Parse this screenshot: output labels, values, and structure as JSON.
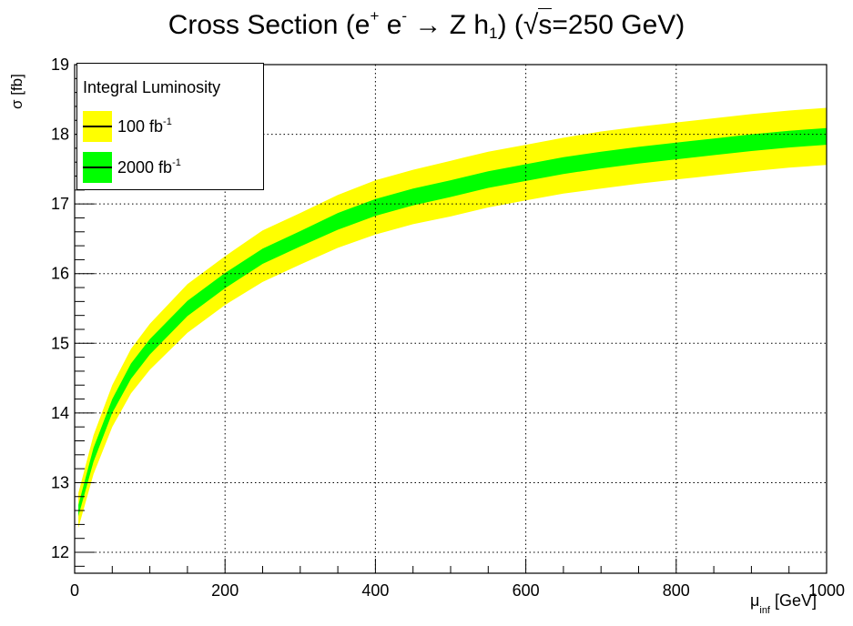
{
  "title": {
    "prefix": "Cross Section (e",
    "sup1": "+",
    "mid1": " e",
    "sup2": "-",
    "arrow": " → Z h",
    "sub1": "1",
    "mid2": ") (√",
    "s": "s",
    "suffix": "=250 GeV)"
  },
  "axes": {
    "ylabel": "σ [fb]",
    "xlabel_main": "μ",
    "xlabel_sub": "inf",
    "xlabel_unit": " [GeV]"
  },
  "legend": {
    "title": "Integral Luminosity",
    "entries": [
      {
        "label": "100 fb",
        "sup": "-1",
        "color": "#ffff00"
      },
      {
        "label": "2000 fb",
        "sup": "-1",
        "color": "#00ff00"
      }
    ]
  },
  "colors": {
    "band_100": "#ffff00",
    "band_2000": "#00ff00",
    "central_line": "#000000",
    "grid": "#000000"
  },
  "chart_data": {
    "type": "area",
    "xlim": [
      0,
      1000
    ],
    "ylim": [
      11.7,
      19
    ],
    "grid": true,
    "legend_position": "top-left",
    "x_ticks": [
      0,
      200,
      400,
      600,
      800,
      1000
    ],
    "y_ticks": [
      12,
      13,
      14,
      15,
      16,
      17,
      18,
      19
    ],
    "x": [
      5,
      25,
      50,
      75,
      100,
      150,
      200,
      250,
      300,
      350,
      400,
      450,
      500,
      550,
      600,
      650,
      700,
      750,
      800,
      850,
      900,
      950,
      1000
    ],
    "series": [
      {
        "name": "100 fb-1",
        "center": [
          12.6,
          13.4,
          14.1,
          14.6,
          14.95,
          15.5,
          15.9,
          16.25,
          16.5,
          16.75,
          16.95,
          17.1,
          17.22,
          17.35,
          17.45,
          17.55,
          17.63,
          17.7,
          17.76,
          17.82,
          17.88,
          17.93,
          17.97
        ],
        "lower": [
          12.35,
          13.12,
          13.8,
          14.28,
          14.62,
          15.15,
          15.55,
          15.88,
          16.13,
          16.37,
          16.56,
          16.71,
          16.82,
          16.95,
          17.05,
          17.15,
          17.22,
          17.29,
          17.35,
          17.41,
          17.47,
          17.52,
          17.56
        ],
        "upper": [
          12.85,
          13.68,
          14.4,
          14.92,
          15.28,
          15.85,
          16.25,
          16.62,
          16.87,
          17.13,
          17.34,
          17.49,
          17.62,
          17.75,
          17.85,
          17.95,
          18.04,
          18.11,
          18.17,
          18.23,
          18.29,
          18.34,
          18.38
        ]
      },
      {
        "name": "2000 fb-1",
        "center": [
          12.6,
          13.4,
          14.1,
          14.6,
          14.95,
          15.5,
          15.9,
          16.25,
          16.5,
          16.75,
          16.95,
          17.1,
          17.22,
          17.35,
          17.45,
          17.55,
          17.63,
          17.7,
          17.76,
          17.82,
          17.88,
          17.93,
          17.97
        ],
        "lower": [
          12.52,
          13.3,
          14.0,
          14.49,
          14.84,
          15.39,
          15.79,
          16.14,
          16.39,
          16.63,
          16.83,
          16.98,
          17.1,
          17.23,
          17.33,
          17.43,
          17.51,
          17.58,
          17.64,
          17.7,
          17.76,
          17.81,
          17.85
        ],
        "upper": [
          12.68,
          13.5,
          14.2,
          14.71,
          15.06,
          15.61,
          16.01,
          16.36,
          16.61,
          16.87,
          17.07,
          17.22,
          17.34,
          17.47,
          17.57,
          17.67,
          17.75,
          17.82,
          17.88,
          17.94,
          18.0,
          18.05,
          18.09
        ]
      }
    ]
  }
}
